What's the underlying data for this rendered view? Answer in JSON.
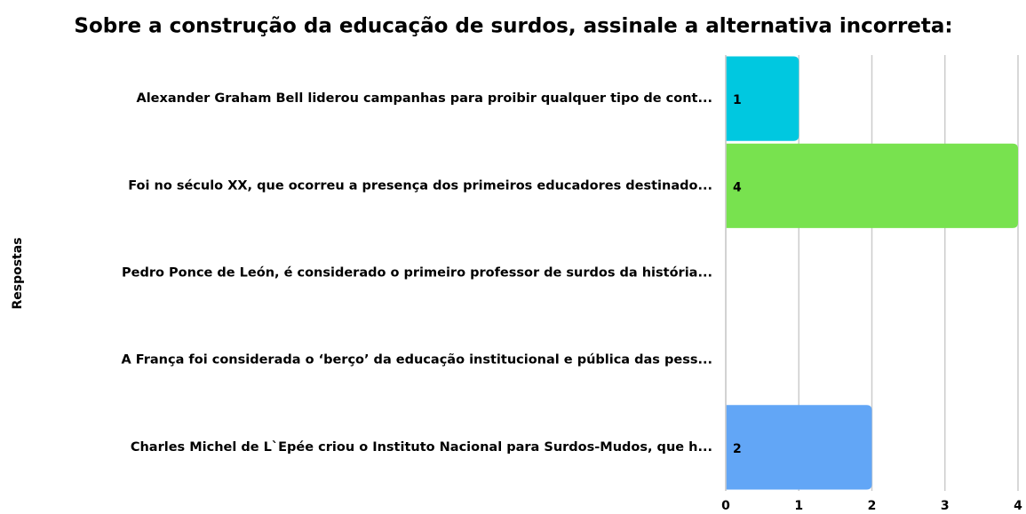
{
  "chart_data": {
    "type": "hbar",
    "title": "Sobre a construção da educação de surdos, assinale a alternativa incorreta:",
    "y_label": "Respostas",
    "categories": [
      "Alexander Graham Bell liderou campanhas para proibir qualquer tipo de cont...",
      "Foi no século XX, que ocorreu a presença dos primeiros educadores destinado...",
      "Pedro Ponce de León, é considerado o primeiro professor de surdos da história...",
      "A França foi considerada o ‘berço’ da educação institucional e pública das pess...",
      "Charles Michel de L`Epée criou o Instituto Nacional para Surdos-Mudos, que h..."
    ],
    "values": [
      1,
      4,
      0,
      0,
      2
    ],
    "colors": [
      "#00c8e0",
      "#78e24f",
      null,
      null,
      "#62a6f6"
    ],
    "xlim": [
      0,
      4
    ],
    "xticks": [
      0,
      1,
      2,
      3,
      4
    ],
    "grid": true
  }
}
